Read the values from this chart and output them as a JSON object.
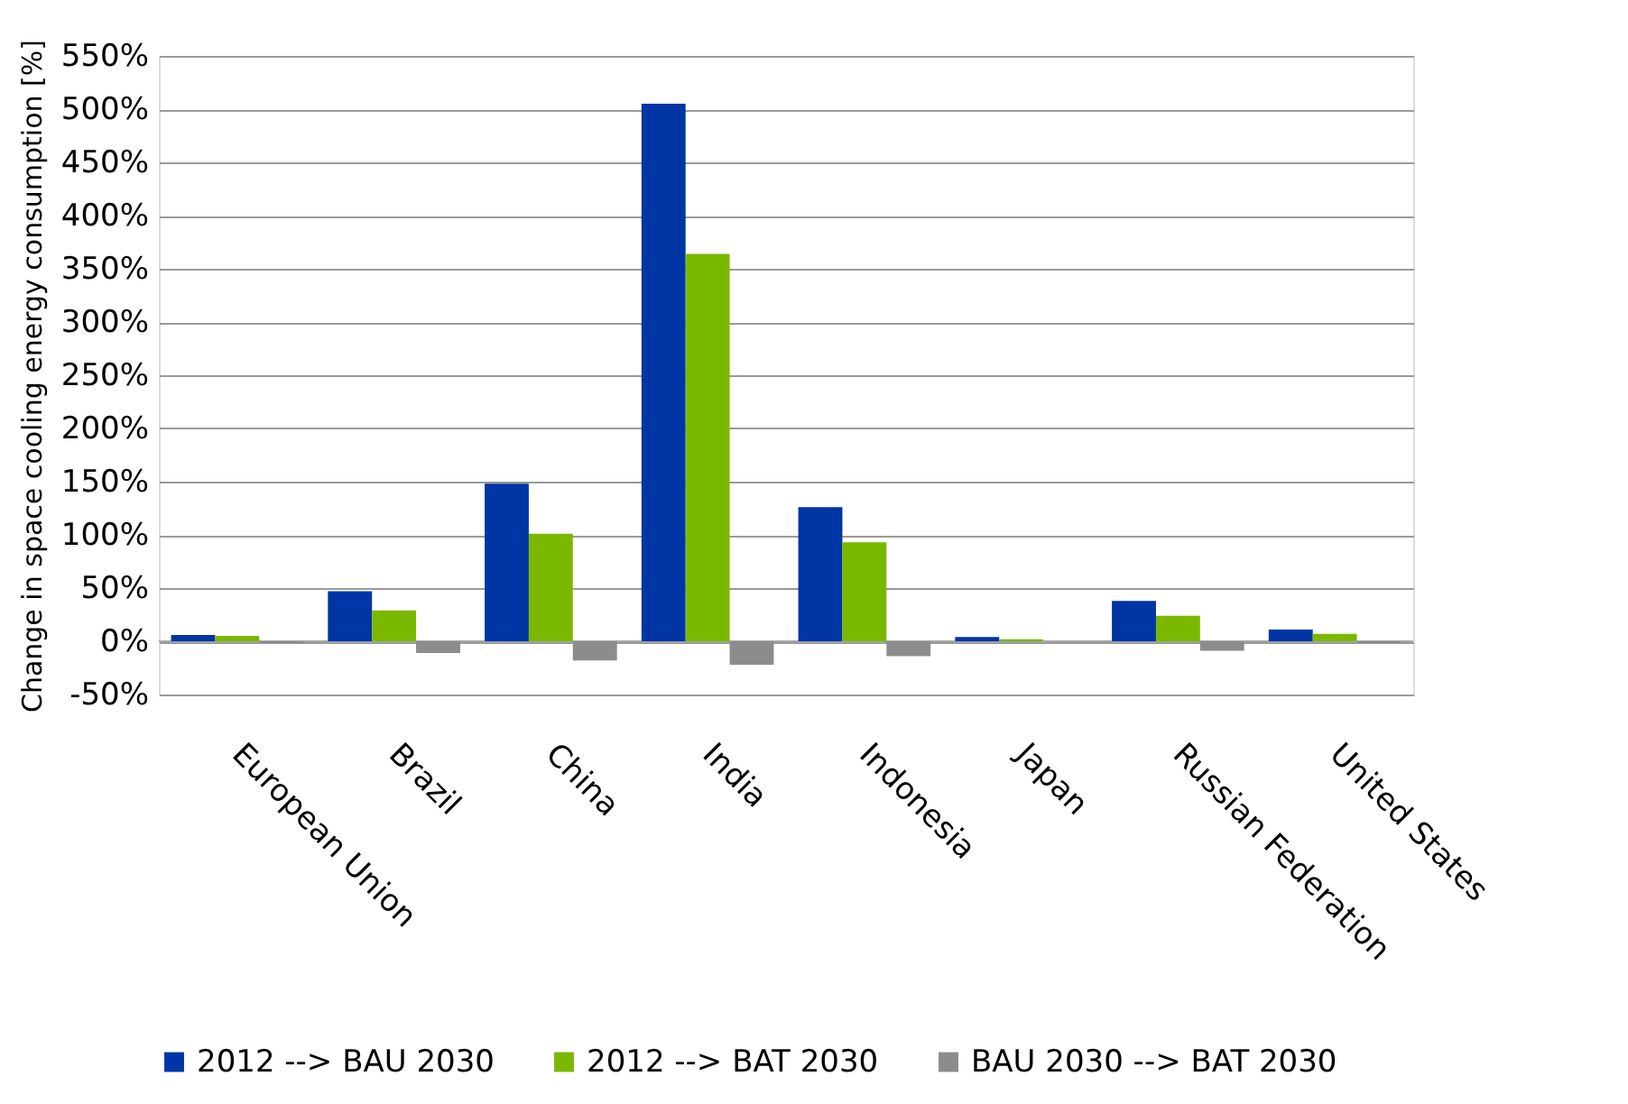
{
  "chart_data": {
    "type": "bar",
    "ylabel": "Change in space cooling energy consumption [%]",
    "categories": [
      "European Union",
      "Brazil",
      "China",
      "India",
      "Indonesia",
      "Japan",
      "Russian Federation",
      "United States"
    ],
    "series": [
      {
        "name": "2012 --> BAU 2030",
        "color": "#0035a5",
        "values": [
          6,
          47,
          148,
          505,
          126,
          4,
          38,
          11
        ]
      },
      {
        "name": "2012 --> BAT 2030",
        "color": "#7ab800",
        "values": [
          5,
          29,
          101,
          364,
          93,
          2,
          24,
          7
        ]
      },
      {
        "name": "BAU 2030 --> BAT 2030",
        "color": "#8c8c8c",
        "values": [
          -2,
          -11,
          -18,
          -22,
          -14,
          null,
          -9,
          -2
        ]
      }
    ],
    "ylim": [
      -50,
      550
    ],
    "yticks": [
      {
        "value": -50,
        "label": "-50%"
      },
      {
        "value": 0,
        "label": "0%"
      },
      {
        "value": 50,
        "label": "50%"
      },
      {
        "value": 100,
        "label": "100%"
      },
      {
        "value": 150,
        "label": "150%"
      },
      {
        "value": 200,
        "label": "200%"
      },
      {
        "value": 250,
        "label": "250%"
      },
      {
        "value": 300,
        "label": "300%"
      },
      {
        "value": 350,
        "label": "350%"
      },
      {
        "value": 400,
        "label": "400%"
      },
      {
        "value": 450,
        "label": "450%"
      },
      {
        "value": 500,
        "label": "500%"
      },
      {
        "value": 550,
        "label": "550%"
      }
    ],
    "grid": "y",
    "legend": "bottom"
  }
}
